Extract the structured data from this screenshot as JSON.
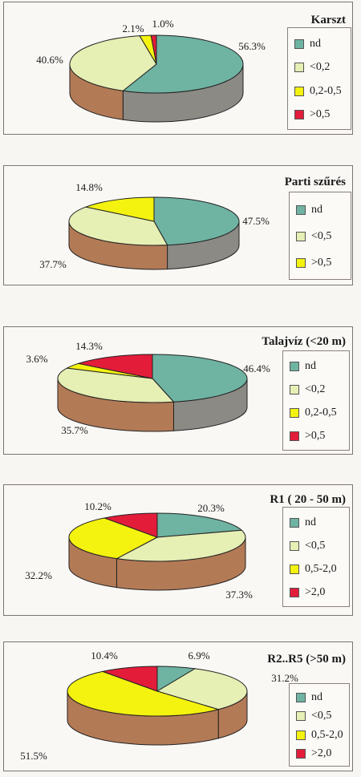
{
  "colors": {
    "nd": "#6fb3a2",
    "light": "#e6efb4",
    "yellow": "#f4f20f",
    "red": "#e31c3a",
    "side_nd": "#8c8a84",
    "side_other": "#b37a56"
  },
  "chart_data": [
    {
      "type": "pie",
      "title": "Karszt",
      "labels": [
        "nd",
        "<0,2",
        "0,2-0,5",
        ">0,5"
      ],
      "values": [
        56.3,
        40.6,
        2.1,
        1.0
      ],
      "value_labels": [
        "56.3%",
        "40.6%",
        "2.1%",
        "1.0%"
      ],
      "legend": [
        "nd",
        "<0,2",
        "0,2-0,5",
        ">0,5"
      ]
    },
    {
      "type": "pie",
      "title": "Parti szűrés",
      "labels": [
        "nd",
        "<0,5",
        ">0,5"
      ],
      "values": [
        47.5,
        37.7,
        14.8
      ],
      "value_labels": [
        "47.5%",
        "37.7%",
        "14.8%"
      ],
      "legend": [
        "nd",
        "<0,5",
        ">0,5"
      ]
    },
    {
      "type": "pie",
      "title": "Talajvíz (<20 m)",
      "labels": [
        "nd",
        "<0,2",
        "0,2-0,5",
        ">0,5"
      ],
      "values": [
        46.4,
        35.7,
        3.6,
        14.3
      ],
      "value_labels": [
        "46.4%",
        "35.7%",
        "3.6%",
        "14.3%"
      ],
      "legend": [
        "nd",
        "<0,2",
        "0,2-0,5",
        ">0,5"
      ]
    },
    {
      "type": "pie",
      "title": "R1 ( 20 - 50 m)",
      "labels": [
        "nd",
        "<0,5",
        "0,5-2,0",
        ">2,0"
      ],
      "values": [
        20.3,
        37.3,
        32.2,
        10.2
      ],
      "value_labels": [
        "20.3%",
        "37.3%",
        "32.2%",
        "10.2%"
      ],
      "legend": [
        "nd",
        "<0,5",
        "0,5-2,0",
        ">2,0"
      ]
    },
    {
      "type": "pie",
      "title": "R2..R5 (>50 m)",
      "labels": [
        "nd",
        "<0,5",
        "0,5-2,0",
        ">2,0"
      ],
      "values": [
        6.9,
        31.2,
        51.5,
        10.4
      ],
      "value_labels": [
        "6.9%",
        "31.2%",
        "51.5%",
        "10.4%"
      ],
      "legend": [
        "nd",
        "<0,5",
        "0,5-2,0",
        ">2,0"
      ]
    }
  ]
}
